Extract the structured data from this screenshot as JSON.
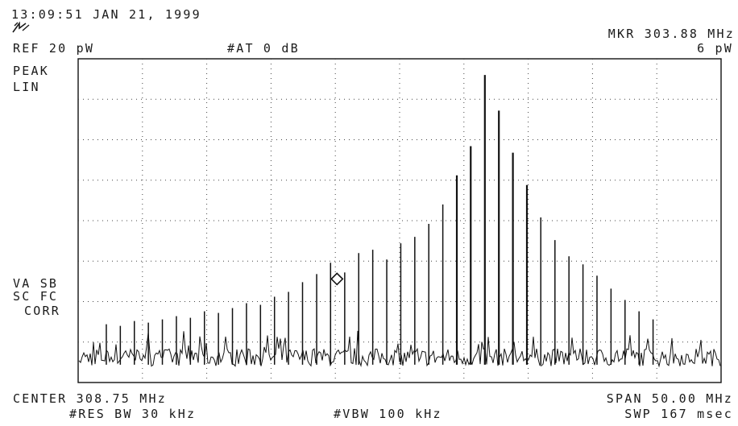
{
  "header": {
    "timestamp": "13:09:51 JAN 21, 1999",
    "reference": "REF 20 pW",
    "attenuation": "#AT 0 dB",
    "marker_readout": "MKR 303.88 MHz",
    "marker_value": "6 pW"
  },
  "left_labels": {
    "detector": "PEAK",
    "scale": "LIN",
    "line1": "VA SB",
    "line2": "SC FC",
    "line3": "CORR"
  },
  "footer": {
    "center": "CENTER 308.75 MHz",
    "span": "SPAN 50.00 MHz",
    "res_bw": "#RES BW 30 kHz",
    "vbw": "#VBW 100 kHz",
    "sweep": "SWP 167 msec"
  },
  "colors": {
    "trace": "#111111",
    "grid": "#444444",
    "frame": "#111111"
  },
  "chart_data": {
    "type": "line",
    "title": "",
    "xlabel": "",
    "ylabel": "",
    "scale": "linear",
    "xlim": [
      283.75,
      333.75
    ],
    "ylim": [
      0,
      20
    ],
    "grid": true,
    "marker": {
      "x": 303.88,
      "y": 6
    },
    "noise_floor": 1.5,
    "series": [
      {
        "name": "",
        "x": [
          285.94,
          287.03,
          288.12,
          289.21,
          290.3,
          291.39,
          292.48,
          293.57,
          294.66,
          295.75,
          296.84,
          297.93,
          299.02,
          300.11,
          301.2,
          302.3,
          303.38,
          304.48,
          305.57,
          306.66,
          307.75,
          308.84,
          309.93,
          311.02,
          312.11,
          313.2,
          314.28,
          315.38,
          316.47,
          317.56,
          318.65,
          319.73,
          320.83,
          321.92,
          323.01,
          324.1,
          325.19,
          326.28,
          327.37,
          328.46
        ],
        "y": [
          3.6,
          3.5,
          3.8,
          3.7,
          3.9,
          4.1,
          4.0,
          4.4,
          4.3,
          4.6,
          4.9,
          4.8,
          5.3,
          5.6,
          6.2,
          6.7,
          7.4,
          6.8,
          8.0,
          8.2,
          7.6,
          8.6,
          9.0,
          9.8,
          11.0,
          12.8,
          14.6,
          19.0,
          16.8,
          14.2,
          12.2,
          10.2,
          8.8,
          7.8,
          7.3,
          6.6,
          5.8,
          5.1,
          4.4,
          3.9
        ]
      }
    ]
  }
}
